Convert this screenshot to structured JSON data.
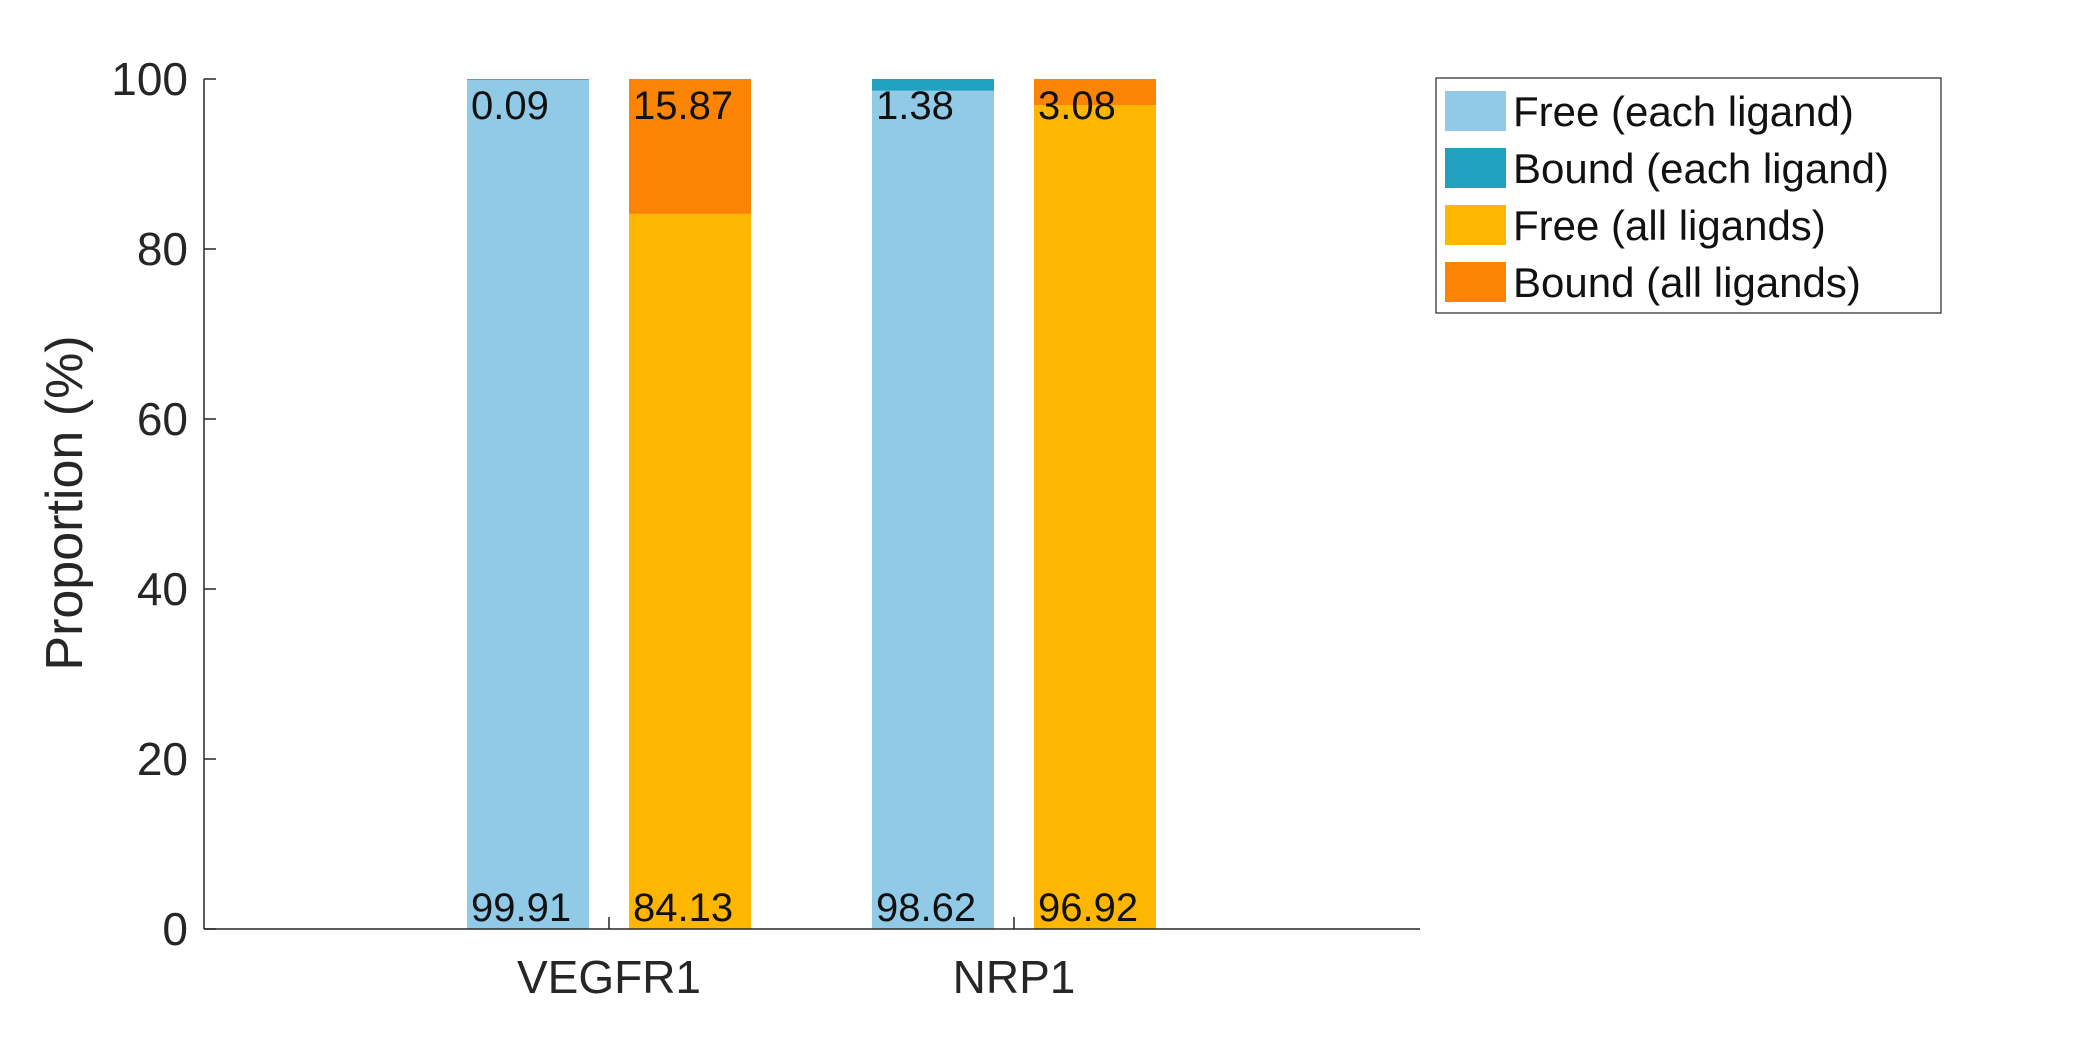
{
  "chart_data": {
    "type": "bar",
    "stacked": true,
    "title": "",
    "xlabel": "",
    "ylabel": "Proportion (%)",
    "ylim": [
      0,
      100
    ],
    "yticks": [
      0,
      20,
      40,
      60,
      80,
      100
    ],
    "categories": [
      "VEGFR1",
      "NRP1"
    ],
    "groups": [
      {
        "category": "VEGFR1",
        "bars": [
          {
            "scope": "each",
            "free": 99.91,
            "bound": 0.09,
            "free_label": "99.91",
            "bound_label": "0.09"
          },
          {
            "scope": "all",
            "free": 84.13,
            "bound": 15.87,
            "free_label": "84.13",
            "bound_label": "15.87"
          }
        ]
      },
      {
        "category": "NRP1",
        "bars": [
          {
            "scope": "each",
            "free": 98.62,
            "bound": 1.38,
            "free_label": "98.62",
            "bound_label": "1.38"
          },
          {
            "scope": "all",
            "free": 96.92,
            "bound": 3.08,
            "free_label": "96.92",
            "bound_label": "3.08"
          }
        ]
      }
    ],
    "series": [
      {
        "name": "Free (each ligand)",
        "color": "#91cae6"
      },
      {
        "name": "Bound (each ligand)",
        "color": "#21a0c0"
      },
      {
        "name": "Free (all ligands)",
        "color": "#ffb600"
      },
      {
        "name": "Bound (all ligands)",
        "color": "#fb8405"
      }
    ],
    "legend_position": "top-right",
    "grid": false
  }
}
